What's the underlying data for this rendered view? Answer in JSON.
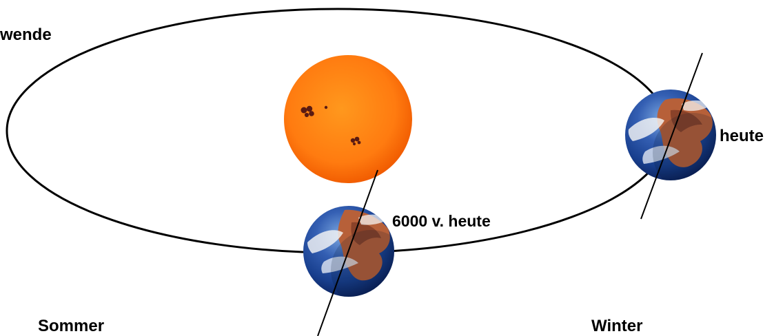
{
  "labels": {
    "wende": "wende",
    "heute": "heute",
    "sechstausend": "6000 v. heute",
    "sommer": "Sommer",
    "winter": "Winter"
  },
  "colors": {
    "orbit": "#000000",
    "sun_core": "#ff8a1f",
    "sun_mid": "#ff6f12",
    "sun_edge": "#ee5600",
    "spots": "#5a1b12",
    "earth_ocean": "#2d4f9b",
    "earth_deep": "#102d78",
    "earth_land": "#b76039",
    "earth_land_dark": "#7b3824",
    "earth_cloud": "#f5f5f5"
  },
  "icons": {
    "sun": "sun-icon",
    "earth": "earth-icon",
    "axis": "tilted-axis-icon",
    "sunspot": "sunspot-icon"
  }
}
